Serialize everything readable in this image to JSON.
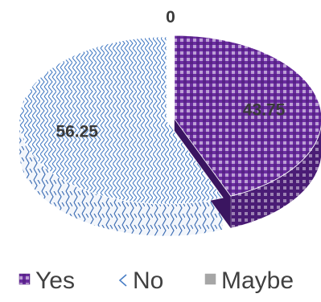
{
  "chart_data": {
    "type": "pie",
    "style": "3d-exploded",
    "categories": [
      "Yes",
      "No",
      "Maybe"
    ],
    "values": [
      43.75,
      56.25,
      0
    ],
    "data_labels": [
      "43.75",
      "56.25",
      "0"
    ],
    "legend": {
      "position": "bottom",
      "entries": [
        "Yes",
        "No",
        "Maybe"
      ]
    },
    "colors": {
      "Yes": "#6b2da0",
      "No": "#3f76c2",
      "Maybe": "#a6a6a6"
    }
  }
}
